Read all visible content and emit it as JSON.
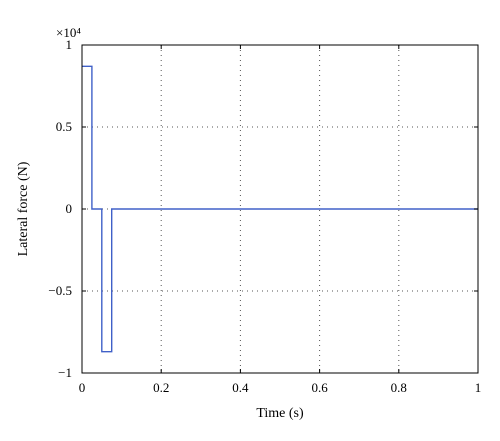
{
  "chart_data": {
    "type": "line",
    "title": "",
    "xlabel": "Time (s)",
    "ylabel": "Lateral force (N)",
    "scale_label": "×10⁴",
    "xlim": [
      0,
      1
    ],
    "ylim": [
      -1,
      1
    ],
    "x_ticks": [
      "0",
      "0.2",
      "0.4",
      "0.6",
      "0.8",
      "1"
    ],
    "y_ticks": [
      "−1",
      "−0.5",
      "0",
      "0.5",
      "1"
    ],
    "x_tick_values": [
      0,
      0.2,
      0.4,
      0.6,
      0.8,
      1
    ],
    "y_tick_values": [
      -1,
      -0.5,
      0,
      0.5,
      1
    ],
    "grid": true,
    "series": [
      {
        "color": "#4060c8",
        "x": [
          0,
          0.025,
          0.025,
          0.05,
          0.05,
          0.075,
          0.075,
          1
        ],
        "y": [
          0.87,
          0.87,
          0,
          0,
          -0.87,
          -0.87,
          0,
          0
        ]
      }
    ]
  }
}
